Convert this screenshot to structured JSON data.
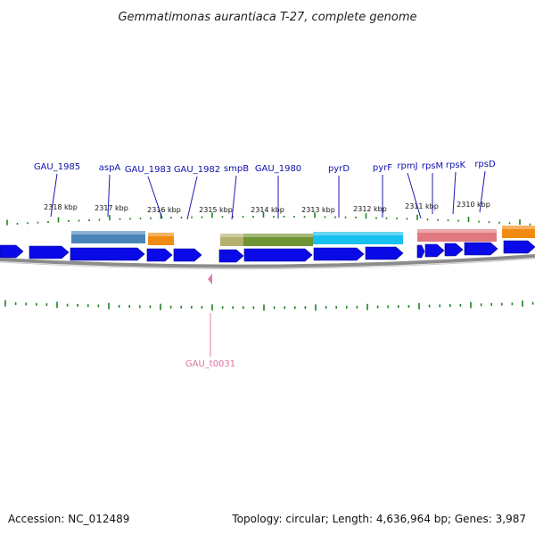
{
  "title": "Gemmatimonas aurantiaca T-27, complete genome",
  "footer": {
    "accession": "Accession: NC_012489",
    "summary": "Topology: circular; Length: 4,636,964 bp; Genes: 3,987"
  },
  "kbp_ticks": [
    {
      "label": "2318 kbp"
    },
    {
      "label": "2317 kbp"
    },
    {
      "label": "2316 kbp"
    },
    {
      "label": "2315 kbp"
    },
    {
      "label": "2314 kbp"
    },
    {
      "label": "2313 kbp"
    },
    {
      "label": "2312 kbp"
    },
    {
      "label": "2311 kbp"
    },
    {
      "label": "2310 kbp"
    }
  ],
  "gene_labels": [
    {
      "name": "GAU_1985"
    },
    {
      "name": "aspA"
    },
    {
      "name": "GAU_1983"
    },
    {
      "name": "GAU_1982"
    },
    {
      "name": "smpB"
    },
    {
      "name": "GAU_1980"
    },
    {
      "name": "pyrD"
    },
    {
      "name": "pyrF"
    },
    {
      "name": "rpmJ"
    },
    {
      "name": "rpsM"
    },
    {
      "name": "rpsK"
    },
    {
      "name": "rpsD"
    }
  ],
  "trna_label": "GAU_t0031",
  "colors": {
    "gene_arrow": "#0a0ae8",
    "tick": "#208020",
    "leader": "#1a1ab0",
    "backbone": "#8c8c8c",
    "trna": "#e47ab0",
    "feature_steelblue": "#4a86b8",
    "feature_orange": "#f08a10",
    "feature_khaki": "#b4b070",
    "feature_olive": "#6f9432",
    "feature_cyan": "#18c0f0",
    "feature_salmon": "#e07880"
  }
}
